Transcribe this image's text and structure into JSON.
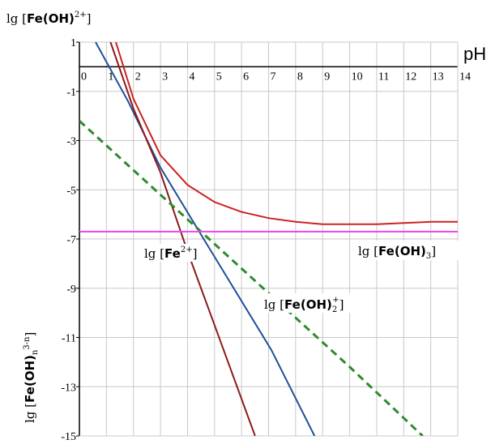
{
  "chart_data": {
    "type": "line",
    "title": "",
    "xlabel": "pH",
    "ylabel": {
      "prefix": "lg [",
      "species": "Fe(OH)",
      "sub": "n",
      "sup": "3-n",
      "suffix": "]"
    },
    "top_label": {
      "prefix": "lg [",
      "species": "Fe(OH)",
      "sup": "2+",
      "suffix": "]"
    },
    "xlim": [
      0,
      14
    ],
    "ylim": [
      -15,
      1
    ],
    "x_ticks": [
      "0",
      "1",
      "2",
      "3",
      "4",
      "5",
      "6",
      "7",
      "8",
      "9",
      "10",
      "11",
      "12",
      "13",
      "14"
    ],
    "y_ticks": [
      "1",
      "-1",
      "-3",
      "-5",
      "-7",
      "-9",
      "-11",
      "-13",
      "-15"
    ],
    "grid": true,
    "series": [
      {
        "color": "#1f4e99",
        "style": "solid",
        "points": [
          [
            0.6,
            1
          ],
          [
            1.8,
            -1.4
          ],
          [
            3.0,
            -4.1
          ],
          [
            4.6,
            -7.0
          ],
          [
            7.1,
            -11.5
          ],
          [
            8.7,
            -15
          ]
        ]
      },
      {
        "color": "#8b1a1a",
        "style": "solid",
        "points": [
          [
            1.15,
            1
          ],
          [
            2.0,
            -1.7
          ],
          [
            3.0,
            -4.3
          ],
          [
            4.0,
            -7.5
          ],
          [
            5.0,
            -10.5
          ],
          [
            6.5,
            -15
          ]
        ]
      },
      {
        "color": "#2e8b2e",
        "style": "dashed",
        "points": [
          [
            0,
            -2.2
          ],
          [
            2.0,
            -4.2
          ],
          [
            4.0,
            -6.2
          ],
          [
            6.0,
            -8.2
          ],
          [
            8.0,
            -10.2
          ],
          [
            10.0,
            -12.2
          ],
          [
            12.7,
            -15
          ]
        ]
      },
      {
        "color": "#cc2222",
        "style": "solid",
        "points": [
          [
            1.35,
            1
          ],
          [
            2.0,
            -1.3
          ],
          [
            3.0,
            -3.6
          ],
          [
            4.0,
            -4.8
          ],
          [
            5.0,
            -5.5
          ],
          [
            6.0,
            -5.9
          ],
          [
            7.0,
            -6.15
          ],
          [
            8.0,
            -6.3
          ],
          [
            9.0,
            -6.4
          ],
          [
            10.0,
            -6.4
          ],
          [
            11.0,
            -6.4
          ],
          [
            12.0,
            -6.35
          ],
          [
            13.0,
            -6.3
          ],
          [
            14.0,
            -6.3
          ]
        ]
      },
      {
        "color": "#ee44ee",
        "style": "solid",
        "points": [
          [
            0,
            -6.7
          ],
          [
            14,
            -6.7
          ]
        ]
      }
    ],
    "annotations": [
      {
        "species": "Fe",
        "sup": "2+",
        "prefix": "lg [",
        "suffix": "]"
      },
      {
        "species": "Fe(OH)",
        "sub": "3",
        "prefix": "lg [",
        "suffix": "]"
      },
      {
        "species": "Fe(OH)",
        "sub": "2",
        "sup": "+",
        "prefix": "lg [",
        "suffix": "]"
      }
    ]
  }
}
